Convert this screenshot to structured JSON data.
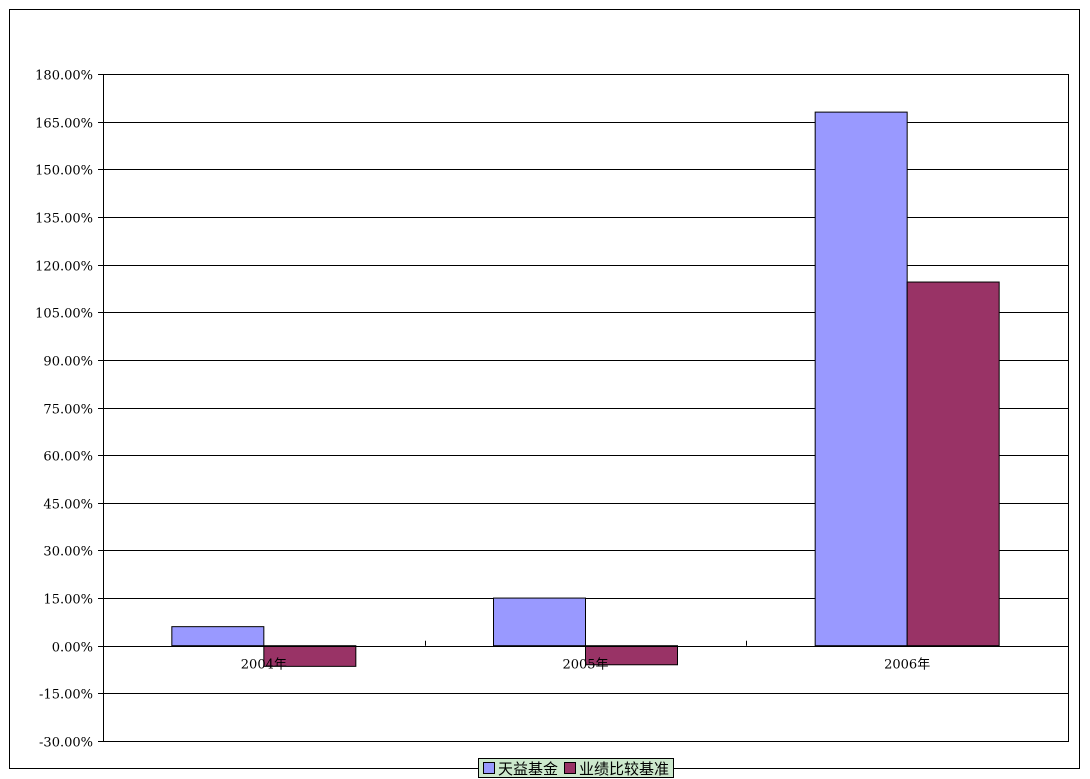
{
  "chart_data": {
    "type": "bar",
    "categories": [
      "2004年",
      "2005年",
      "2006年"
    ],
    "series": [
      {
        "name": "天益基金",
        "values": [
          6.0,
          15.0,
          168.0
        ],
        "color": "#9999ff"
      },
      {
        "name": "业绩比较基准",
        "values": [
          -6.5,
          -6.0,
          114.5
        ],
        "color": "#993366"
      }
    ],
    "ylim": [
      -30,
      180
    ],
    "yticks": [
      -30,
      -15,
      0,
      15,
      30,
      45,
      60,
      75,
      90,
      105,
      120,
      135,
      150,
      165,
      180
    ],
    "ytick_labels": [
      "-30.00%",
      "-15.00%",
      "0.00%",
      "15.00%",
      "30.00%",
      "45.00%",
      "60.00%",
      "75.00%",
      "90.00%",
      "105.00%",
      "120.00%",
      "135.00%",
      "150.00%",
      "165.00%",
      "180.00%"
    ],
    "grid": true,
    "legend_position": "bottom",
    "legend_background": "#cce8cc"
  }
}
